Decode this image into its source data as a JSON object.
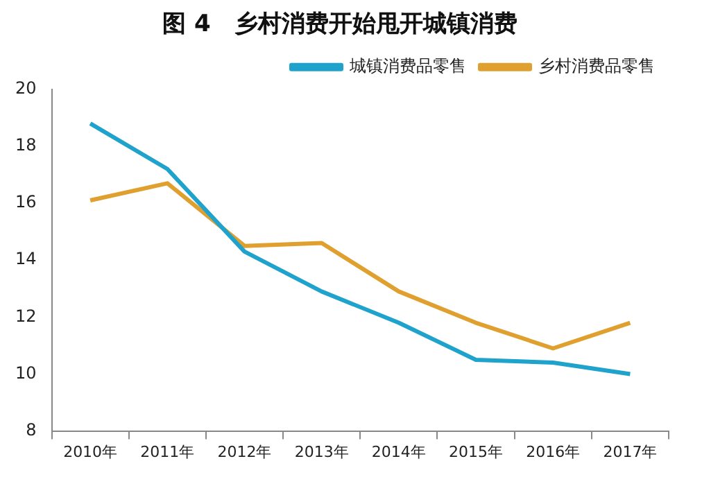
{
  "chart_data": {
    "type": "line",
    "title": "图 4　乡村消费开始甩开城镇消费",
    "categories": [
      "2010年",
      "2011年",
      "2012年",
      "2013年",
      "2014年",
      "2015年",
      "2016年",
      "2017年"
    ],
    "series": [
      {
        "name": "城镇消费品零售",
        "color": "#1fa3cc",
        "values": [
          18.8,
          17.2,
          14.3,
          12.9,
          11.8,
          10.5,
          10.4,
          10.0
        ]
      },
      {
        "name": "乡村消费品零售",
        "color": "#e0a030",
        "values": [
          16.1,
          16.7,
          14.5,
          14.6,
          12.9,
          11.8,
          10.9,
          11.8
        ]
      }
    ],
    "ylim": [
      8,
      20
    ],
    "yticks": [
      8,
      10,
      12,
      14,
      16,
      18,
      20
    ],
    "grid": false,
    "legend": "top",
    "marker": "none",
    "line_style": "solid"
  }
}
